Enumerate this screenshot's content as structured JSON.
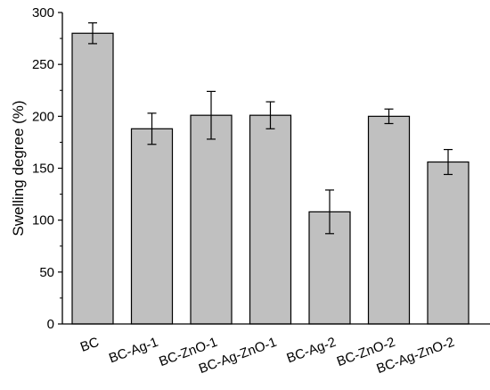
{
  "chart_data": {
    "type": "bar",
    "title": "",
    "xlabel": "",
    "ylabel": "Swelling degree (%)",
    "categories": [
      "BC",
      "BC-Ag-1",
      "BC-ZnO-1",
      "BC-Ag-ZnO-1",
      "BC-Ag-2",
      "BC-ZnO-2",
      "BC-Ag-ZnO-2"
    ],
    "values": [
      280,
      188,
      201,
      201,
      108,
      200,
      156
    ],
    "errors": [
      10,
      15,
      23,
      13,
      21,
      7,
      12
    ],
    "ylim": [
      0,
      300
    ],
    "yticks": [
      0,
      50,
      100,
      150,
      200,
      250,
      300
    ],
    "grid": false,
    "bar_color": "#c0c0c0",
    "edge_color": "#000000"
  }
}
